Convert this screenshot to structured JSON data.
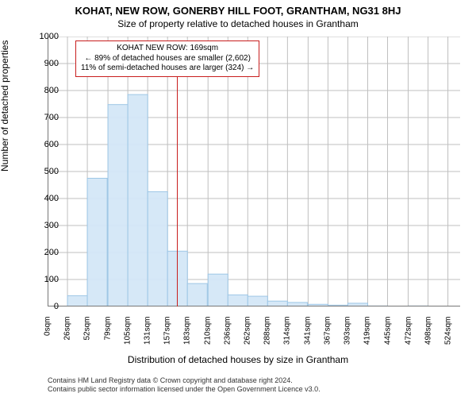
{
  "title": "KOHAT, NEW ROW, GONERBY HILL FOOT, GRANTHAM, NG31 8HJ",
  "subtitle": "Size of property relative to detached houses in Grantham",
  "ylabel": "Number of detached properties",
  "xlabel": "Distribution of detached houses by size in Grantham",
  "chart": {
    "type": "histogram",
    "background_color": "#ffffff",
    "grid_color": "#bfbfbf",
    "axis_color": "#777777",
    "bar_fill": "#d4e7f7",
    "bar_stroke": "#9ec7e6",
    "xlim": [
      0,
      540
    ],
    "ylim": [
      0,
      1000
    ],
    "ytick_step": 100,
    "xticks": [
      0,
      26,
      52,
      79,
      105,
      131,
      157,
      183,
      210,
      236,
      262,
      288,
      314,
      341,
      367,
      393,
      419,
      445,
      472,
      498,
      524
    ],
    "xtick_labels": [
      "0sqm",
      "26sqm",
      "52sqm",
      "79sqm",
      "105sqm",
      "131sqm",
      "157sqm",
      "183sqm",
      "210sqm",
      "236sqm",
      "262sqm",
      "288sqm",
      "314sqm",
      "341sqm",
      "367sqm",
      "393sqm",
      "419sqm",
      "445sqm",
      "472sqm",
      "498sqm",
      "524sqm"
    ],
    "bin_width": 26,
    "bins_x": [
      0,
      26,
      52,
      79,
      105,
      131,
      157,
      183,
      210,
      236,
      262,
      288,
      314,
      341,
      367,
      393,
      419,
      445,
      472,
      498,
      524
    ],
    "values": [
      0,
      40,
      475,
      748,
      785,
      425,
      205,
      85,
      120,
      43,
      38,
      20,
      15,
      8,
      5,
      12,
      2,
      0,
      2,
      0,
      0
    ]
  },
  "marker": {
    "x_value": 169,
    "color": "#c81e1e",
    "line1": "KOHAT NEW ROW: 169sqm",
    "line2": "← 89% of detached houses are smaller (2,602)",
    "line3": "11% of semi-detached houses are larger (324) →"
  },
  "footer": {
    "line1": "Contains HM Land Registry data © Crown copyright and database right 2024.",
    "line2": "Contains public sector information licensed under the Open Government Licence v3.0."
  },
  "fontsize": {
    "title": 13,
    "subtitle": 12,
    "axis_label": 12,
    "tick": 11,
    "xtick": 10,
    "annot": 10,
    "footer": 9
  }
}
